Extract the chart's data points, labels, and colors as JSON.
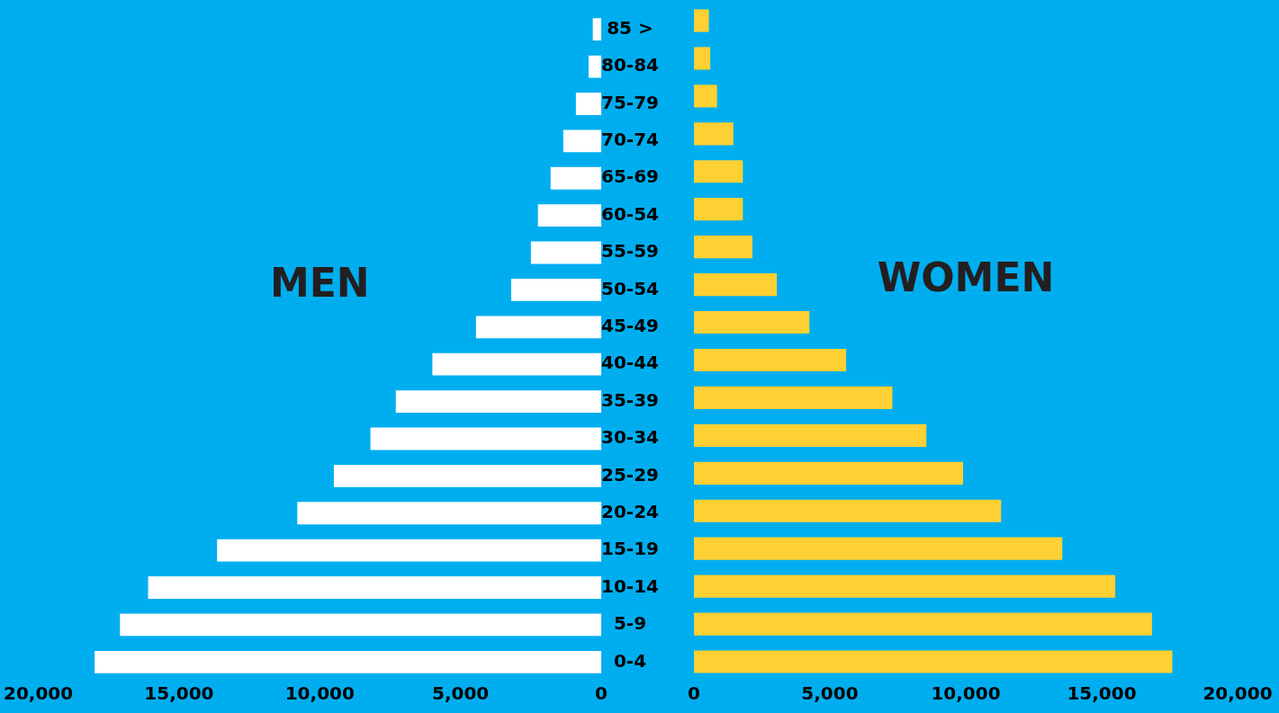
{
  "chart_data": [
    {
      "type": "bar",
      "orientation": "horizontal",
      "grid": false,
      "legend": false,
      "categories": [
        "85 >",
        "80-84",
        "75-79",
        "70-74",
        "65-69",
        "60-54",
        "55-59",
        "50-54",
        "45-49",
        "40-44",
        "35-39",
        "30-34",
        "25-29",
        "20-24",
        "15-19",
        "10-14",
        "5-9",
        "0-4"
      ],
      "series": [
        {
          "name": "MEN",
          "color": "#ffffff",
          "values": [
            300,
            450,
            900,
            1350,
            1800,
            2250,
            2500,
            3200,
            4450,
            6000,
            7300,
            8200,
            9500,
            10800,
            13650,
            16100,
            17100,
            18000
          ]
        }
      ],
      "xlim": [
        20000,
        0
      ],
      "xticks": [
        {
          "value": 20000,
          "label": "20,000"
        },
        {
          "value": 15000,
          "label": "15,000"
        },
        {
          "value": 10000,
          "label": "10,000"
        },
        {
          "value": 5000,
          "label": "5,000"
        },
        0
      ]
    },
    {
      "type": "bar",
      "orientation": "horizontal",
      "tick_labels": "x",
      "grid": false,
      "legend": false,
      "categories": [
        null,
        null,
        null,
        null,
        null,
        null,
        null,
        null,
        null,
        null,
        null,
        null,
        null,
        null,
        null,
        null,
        null,
        null
      ],
      "series": [
        {
          "name": "WOMEN",
          "color": "#ffd033",
          "values": [
            550,
            600,
            850,
            1450,
            1800,
            1800,
            2150,
            3050,
            4250,
            5600,
            7300,
            8550,
            9900,
            11300,
            13550,
            15500,
            16850,
            17600
          ]
        }
      ],
      "xlim": [
        0,
        20000
      ],
      "xticks": [
        0,
        {
          "value": 5000,
          "label": "5,000"
        },
        {
          "value": 10000,
          "label": "10,000"
        },
        {
          "value": 15000,
          "label": "15,000"
        },
        {
          "value": 20000,
          "label": "20,000"
        }
      ]
    }
  ]
}
